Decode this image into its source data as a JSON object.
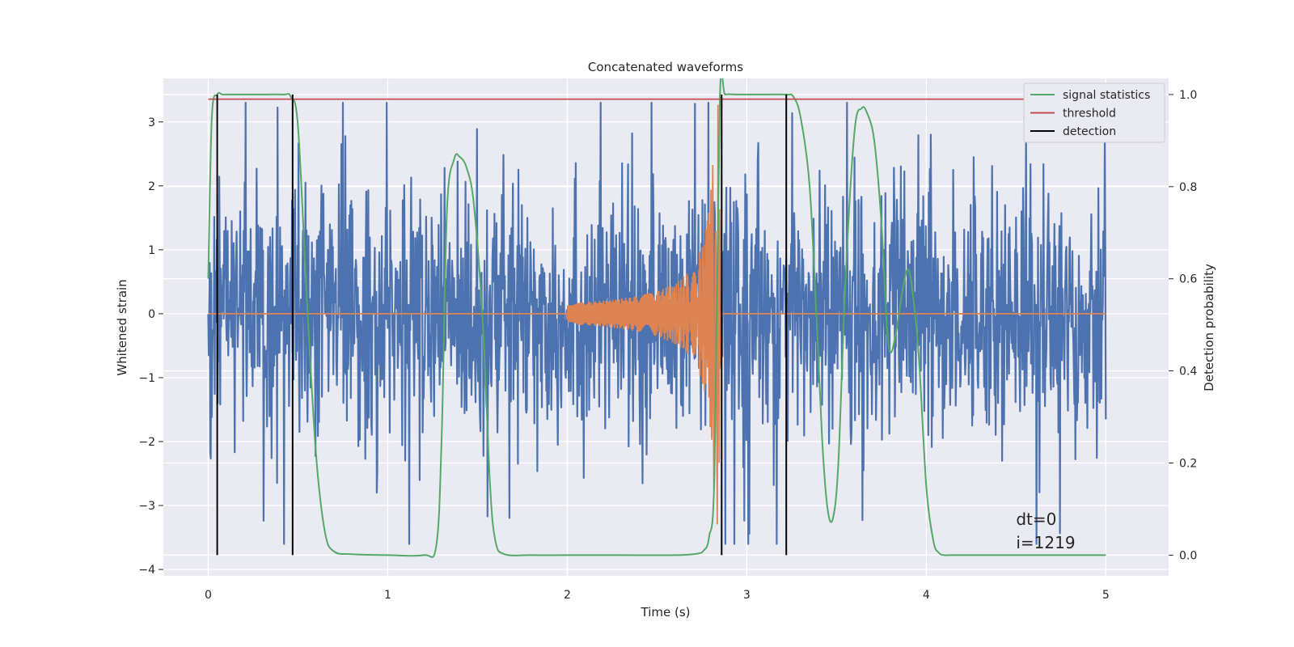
{
  "chart_data": {
    "type": "line",
    "title": "Concatenated waveforms",
    "xlabel": "Time (s)",
    "ylabel_left": "Whitened strain",
    "ylabel_right": "Detection probability",
    "xlim": [
      -0.25,
      5.35
    ],
    "ylim_left": [
      -4.1,
      3.68
    ],
    "ylim_right": [
      -0.045,
      1.035
    ],
    "xticks": [
      0,
      1,
      2,
      3,
      4,
      5
    ],
    "xtick_labels": [
      "0",
      "1",
      "2",
      "3",
      "4",
      "5"
    ],
    "yticks_left": [
      -4,
      -3,
      -2,
      -1,
      0,
      1,
      2,
      3
    ],
    "ytick_labels_left": [
      "−4",
      "−3",
      "−2",
      "−1",
      "0",
      "1",
      "2",
      "3"
    ],
    "yticks_right": [
      0.0,
      0.2,
      0.4,
      0.6,
      0.8,
      1.0
    ],
    "ytick_labels_right": [
      "0.0",
      "0.2",
      "0.4",
      "0.6",
      "0.8",
      "1.0"
    ],
    "grid": true,
    "legend_position": "top-right",
    "legend": [
      {
        "label": "signal statistics",
        "color": "#55a868"
      },
      {
        "label": "threshold",
        "color": "#c44e52"
      },
      {
        "label": "detection",
        "color": "#000000"
      }
    ],
    "series": [
      {
        "kind": "noise",
        "axis": "left",
        "color": "#4c72b0",
        "x_range": [
          0,
          5
        ],
        "typical_range": [
          -1.5,
          1.5
        ],
        "extremes": [
          -3.6,
          3.3
        ]
      },
      {
        "kind": "chirp",
        "axis": "left",
        "color": "#dd8452",
        "baseline": 0,
        "start_time": 2.0,
        "end_time": 2.85,
        "start_amplitude": 0.1,
        "peak_amplitude": 3.3
      },
      {
        "name": "signal statistics",
        "axis": "right",
        "color": "#55a868",
        "x": [
          0,
          0.02,
          0.05,
          0.08,
          0.12,
          0.3,
          0.42,
          0.46,
          0.5,
          0.55,
          0.6,
          0.65,
          0.7,
          0.8,
          1.0,
          1.2,
          1.27,
          1.3,
          1.33,
          1.37,
          1.4,
          1.44,
          1.48,
          1.53,
          1.57,
          1.6,
          1.65,
          1.8,
          2.0,
          2.3,
          2.6,
          2.72,
          2.76,
          2.79,
          2.82,
          2.85,
          2.88,
          2.95,
          3.1,
          3.22,
          3.26,
          3.3,
          3.35,
          3.39,
          3.42,
          3.45,
          3.48,
          3.51,
          3.55,
          3.6,
          3.64,
          3.67,
          3.71,
          3.75,
          3.78,
          3.8,
          3.83,
          3.87,
          3.9,
          3.93,
          3.96,
          4.0,
          4.04,
          4.07,
          4.1,
          4.15,
          4.5,
          5.0
        ],
        "values": [
          0.6,
          0.95,
          1.0,
          1.0,
          1.0,
          1.0,
          1.0,
          0.995,
          0.93,
          0.55,
          0.22,
          0.05,
          0.008,
          0.002,
          0.0,
          0.0,
          0.02,
          0.25,
          0.75,
          0.86,
          0.865,
          0.84,
          0.76,
          0.5,
          0.15,
          0.03,
          0.002,
          0.0,
          0.0,
          0.0,
          0.0,
          0.003,
          0.01,
          0.04,
          0.18,
          0.99,
          1.0,
          1.0,
          1.0,
          1.0,
          0.995,
          0.95,
          0.8,
          0.5,
          0.25,
          0.1,
          0.08,
          0.2,
          0.6,
          0.92,
          0.97,
          0.96,
          0.9,
          0.72,
          0.5,
          0.44,
          0.48,
          0.58,
          0.62,
          0.55,
          0.42,
          0.15,
          0.03,
          0.005,
          0.0,
          0.0,
          0.0,
          0.0
        ]
      },
      {
        "name": "threshold",
        "axis": "right",
        "color": "#c44e52",
        "x": [
          0,
          5
        ],
        "values": [
          0.99,
          0.99
        ]
      },
      {
        "name": "detection",
        "axis": "right",
        "color": "#000000",
        "type": "vlines",
        "x": [
          0.05,
          0.47,
          2.86,
          3.22
        ],
        "range": [
          0,
          1
        ]
      }
    ],
    "annotation": {
      "lines": [
        "dt=0",
        "i=1219"
      ],
      "x": 4.5,
      "y": -3.3
    }
  }
}
